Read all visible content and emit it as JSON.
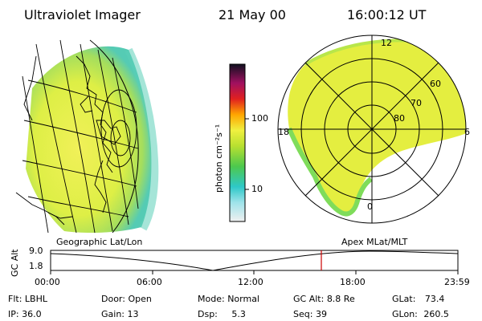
{
  "header": {
    "instrument": "Ultraviolet Imager",
    "date": "21 May 00",
    "time": "16:00:12 UT"
  },
  "colorbar": {
    "label": "photon cm⁻²s⁻¹",
    "ticks": [
      "100",
      "10"
    ],
    "scale": "log"
  },
  "left_panel": {
    "caption": "Geographic Lat/Lon"
  },
  "right_panel": {
    "caption": "Apex MLat/MLT",
    "mlt_labels": [
      "12",
      "18",
      "6",
      "0"
    ],
    "mlat_labels": [
      "60",
      "70",
      "80"
    ]
  },
  "altitude_plot": {
    "ylabel": "GC Alt",
    "yticks": [
      "9.0",
      "1.8"
    ],
    "xticks": [
      "00:00",
      "06:00",
      "12:00",
      "18:00",
      "23:59"
    ],
    "current_time_marker": "16:00",
    "marker_color": "#cc0000"
  },
  "status": {
    "row1": {
      "flt_label": "Flt:",
      "flt_value": "LBHL",
      "door_label": "Door:",
      "door_value": "Open",
      "mode_label": "Mode:",
      "mode_value": "Normal",
      "gcalt_label": "GC Alt:",
      "gcalt_value": "8.8 Re",
      "glat_label": "GLat:",
      "glat_value": "73.4"
    },
    "row2": {
      "ip_label": "IP:",
      "ip_value": "36.0",
      "gain_label": "Gain:",
      "gain_value": "13",
      "dsp_label": "Dsp:",
      "dsp_value": "5.3",
      "seq_label": "Seq:",
      "seq_value": "39",
      "glon_label": "GLon:",
      "glon_value": "260.5"
    }
  },
  "colors": {
    "aurora_main": "#e6f03c",
    "aurora_edge": "#7fdc5a",
    "aurora_limb": "#35c8b4"
  }
}
